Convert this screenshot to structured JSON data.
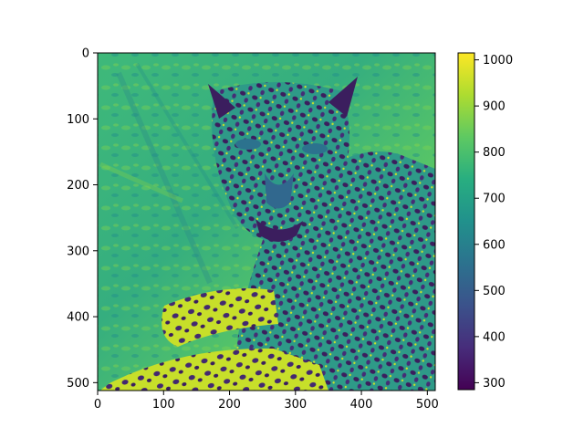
{
  "chart_data": {
    "type": "heatmap",
    "title": "",
    "xlabel": "",
    "ylabel": "",
    "content": "leopard",
    "colormap": "viridis",
    "image_size": [
      512,
      512
    ],
    "xlim": [
      0,
      512
    ],
    "ylim": [
      512,
      0
    ],
    "x_ticks": [
      0,
      100,
      200,
      300,
      400,
      500
    ],
    "y_ticks": [
      0,
      100,
      200,
      300,
      400,
      500
    ],
    "colorbar": {
      "range": [
        285,
        1015
      ],
      "ticks": [
        300,
        400,
        500,
        600,
        700,
        800,
        900,
        1000
      ]
    },
    "grid": false
  }
}
